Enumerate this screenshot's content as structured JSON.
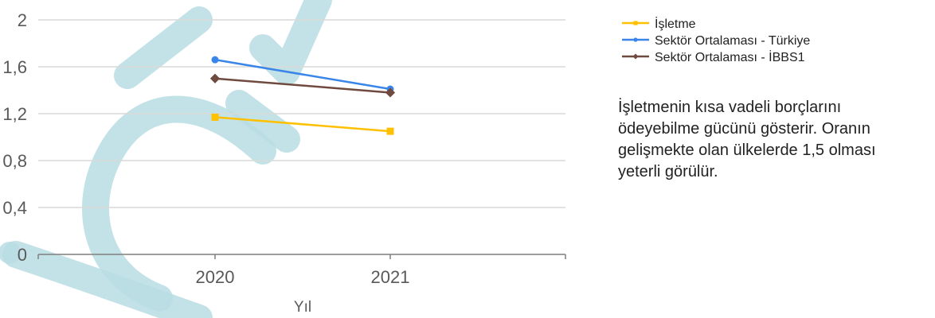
{
  "chart_data": {
    "type": "line",
    "xlabel": "Yıl",
    "ylabel": "",
    "categories": [
      "2020",
      "2021"
    ],
    "ylim": [
      0,
      2
    ],
    "yticks": [
      "0",
      "0,4",
      "0,8",
      "1,2",
      "1,6",
      "2"
    ],
    "yticks_values": [
      0,
      0.4,
      0.8,
      1.2,
      1.6,
      2
    ],
    "grid": true,
    "legend": "right",
    "series": [
      {
        "name": "İşletme",
        "values": [
          1.17,
          1.05
        ],
        "color": "#FFC000",
        "marker": "square"
      },
      {
        "name": "Sektör Ortalaması - Türkiye",
        "values": [
          1.66,
          1.41
        ],
        "color": "#3A86E8",
        "marker": "circle"
      },
      {
        "name": "Sektör Ortalaması - İBBS1",
        "values": [
          1.5,
          1.38
        ],
        "color": "#6E4B3E",
        "marker": "diamond"
      }
    ]
  },
  "note": {
    "lines": [
      "İşletmenin kısa vadeli borçlarını",
      "ödeyebilme gücünü gösterir. Oranın",
      "gelişmekte olan ülkelerde 1,5 olması",
      "yeterli görülür."
    ]
  },
  "watermark": {
    "color": "#B9DDE3"
  }
}
